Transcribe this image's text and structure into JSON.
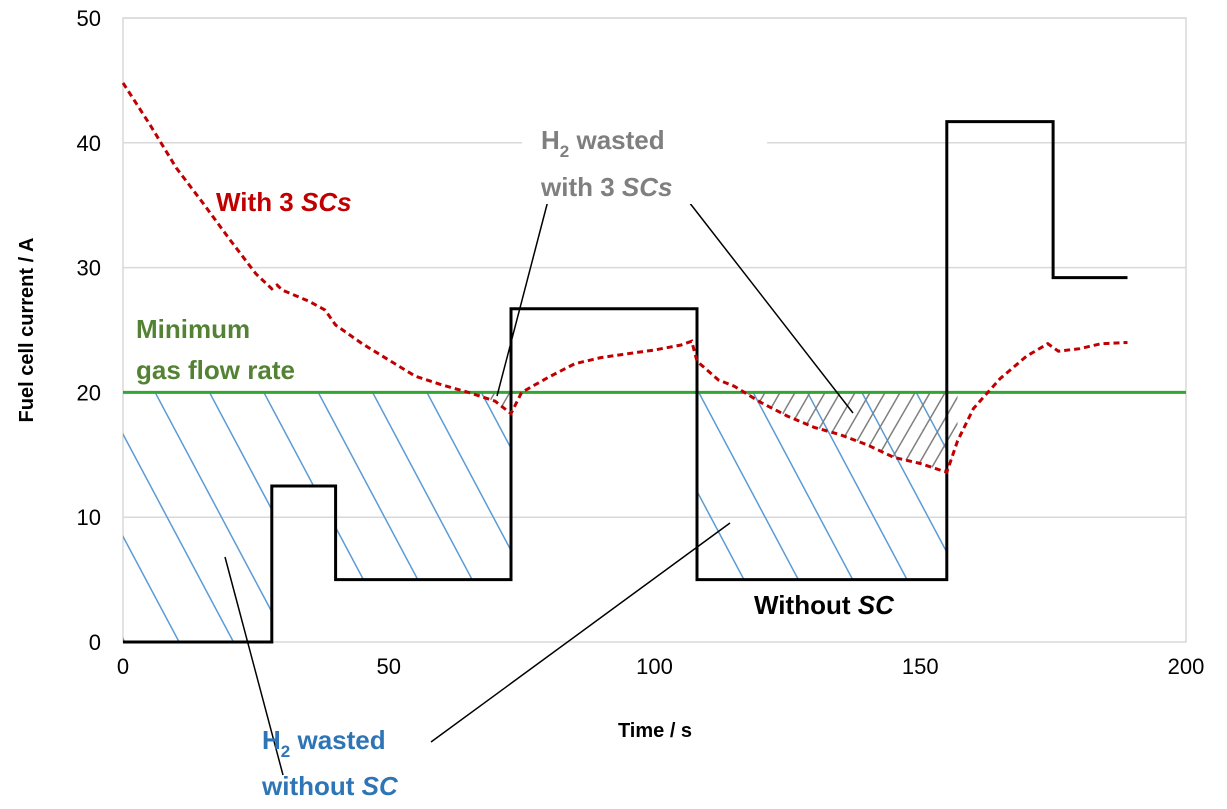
{
  "chart_data": {
    "type": "line",
    "xlabel": "Time / s",
    "ylabel": "Fuel cell current / A",
    "xlim": [
      0,
      200
    ],
    "ylim": [
      0,
      50
    ],
    "x_ticks": [
      "0",
      "50",
      "100",
      "150",
      "200"
    ],
    "y_ticks": [
      "0",
      "10",
      "20",
      "30",
      "40",
      "50"
    ],
    "grid": "horizontal",
    "series": [
      {
        "name": "Without SC",
        "color": "#000000",
        "style": "solid-step",
        "points": [
          [
            0,
            0
          ],
          [
            28,
            0
          ],
          [
            28,
            12.5
          ],
          [
            40,
            12.5
          ],
          [
            40,
            5
          ],
          [
            73,
            5
          ],
          [
            73,
            26.7
          ],
          [
            108,
            26.7
          ],
          [
            108,
            5
          ],
          [
            155,
            5
          ],
          [
            155,
            41.7
          ],
          [
            175,
            41.7
          ],
          [
            175,
            29.2
          ],
          [
            189,
            29.2
          ]
        ]
      },
      {
        "name": "With 3 SCs",
        "color": "#c00000",
        "style": "dashed",
        "points": [
          [
            0,
            44.8
          ],
          [
            5,
            41.5
          ],
          [
            10,
            38
          ],
          [
            15,
            35.2
          ],
          [
            20,
            32.3
          ],
          [
            25,
            29.5
          ],
          [
            28,
            28.3
          ],
          [
            29,
            28.6
          ],
          [
            30,
            28.2
          ],
          [
            35,
            27.3
          ],
          [
            38,
            26.6
          ],
          [
            40,
            25.4
          ],
          [
            45,
            23.9
          ],
          [
            50,
            22.6
          ],
          [
            55,
            21.3
          ],
          [
            60,
            20.6
          ],
          [
            65,
            20
          ],
          [
            70,
            19.3
          ],
          [
            73,
            18.3
          ],
          [
            75,
            20
          ],
          [
            80,
            21.2
          ],
          [
            85,
            22.3
          ],
          [
            90,
            22.8
          ],
          [
            95,
            23.1
          ],
          [
            100,
            23.4
          ],
          [
            105,
            23.8
          ],
          [
            107,
            24.1
          ],
          [
            108,
            22.5
          ],
          [
            112,
            21
          ],
          [
            115,
            20.5
          ],
          [
            120,
            19.2
          ],
          [
            125,
            18.1
          ],
          [
            130,
            17.2
          ],
          [
            135,
            16.6
          ],
          [
            140,
            15.8
          ],
          [
            145,
            14.8
          ],
          [
            150,
            14.3
          ],
          [
            155,
            13.6
          ],
          [
            157,
            16.1
          ],
          [
            160,
            18.7
          ],
          [
            165,
            21.1
          ],
          [
            170,
            22.9
          ],
          [
            174,
            23.9
          ],
          [
            176,
            23.3
          ],
          [
            180,
            23.5
          ],
          [
            184,
            23.9
          ],
          [
            189,
            24
          ]
        ]
      },
      {
        "name": "Minimum gas flow rate",
        "color": "#2ca02c",
        "style": "solid",
        "points": [
          [
            0,
            20
          ],
          [
            200,
            20
          ]
        ]
      }
    ],
    "shaded_regions": [
      {
        "label": "H2 wasted without SC",
        "color": "#5b9bd5",
        "between": "Minimum gas flow rate and Without SC"
      },
      {
        "label": "H2 wasted with 3 SCs",
        "color": "#808080",
        "between": "Minimum gas flow rate and With 3 SCs"
      }
    ],
    "annotations": {
      "with_scs": {
        "text": "With 3 ",
        "italic": "SCs",
        "color": "#c00000"
      },
      "min_flow_1": {
        "text": "Minimum",
        "color": "#548235"
      },
      "min_flow_2": {
        "text": "gas flow rate",
        "color": "#548235"
      },
      "wasted_scs_h": "H",
      "wasted_scs_sub": "2",
      "wasted_scs_rest": " wasted",
      "wasted_scs_line2": "with 3 ",
      "wasted_scs_line2_it": "SCs",
      "wasted_scs_color": "#7f7f7f",
      "wasted_nosc_h": "H",
      "wasted_nosc_sub": "2",
      "wasted_nosc_rest": " wasted",
      "wasted_nosc_line2": "without ",
      "wasted_nosc_line2_it": "SC",
      "wasted_nosc_color": "#2e75b6",
      "without_sc": "Without ",
      "without_sc_it": "SC"
    }
  }
}
